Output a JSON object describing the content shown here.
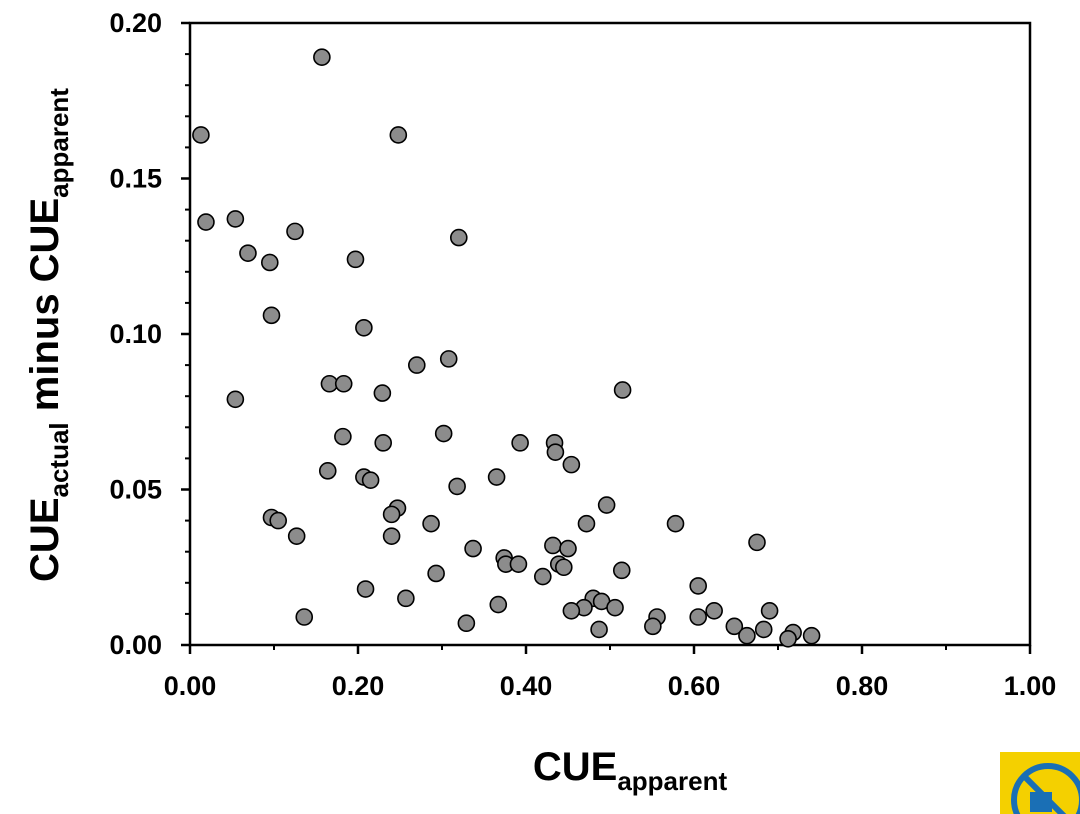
{
  "chart_data": {
    "type": "scatter",
    "xlabel": {
      "main": "CUE",
      "sub": "apparent"
    },
    "ylabel": {
      "main1": "CUE",
      "sub1": "actual",
      "mid": " minus CUE",
      "sub2": "apparent"
    },
    "xlim": [
      0,
      1
    ],
    "ylim": [
      0,
      0.2
    ],
    "x_ticks": [
      "0.00",
      "0.20",
      "0.40",
      "0.60",
      "0.80",
      "1.00"
    ],
    "y_ticks": [
      "0.00",
      "0.05",
      "0.10",
      "0.15",
      "0.20"
    ],
    "grid": false,
    "legend": "none",
    "marker_color": "#8c8c8c",
    "points": [
      [
        0.157,
        0.189
      ],
      [
        0.013,
        0.164
      ],
      [
        0.248,
        0.164
      ],
      [
        0.019,
        0.136
      ],
      [
        0.054,
        0.137
      ],
      [
        0.125,
        0.133
      ],
      [
        0.069,
        0.126
      ],
      [
        0.095,
        0.123
      ],
      [
        0.197,
        0.124
      ],
      [
        0.32,
        0.131
      ],
      [
        0.097,
        0.106
      ],
      [
        0.207,
        0.102
      ],
      [
        0.308,
        0.092
      ],
      [
        0.27,
        0.09
      ],
      [
        0.166,
        0.084
      ],
      [
        0.183,
        0.084
      ],
      [
        0.229,
        0.081
      ],
      [
        0.515,
        0.082
      ],
      [
        0.054,
        0.079
      ],
      [
        0.182,
        0.067
      ],
      [
        0.23,
        0.065
      ],
      [
        0.302,
        0.068
      ],
      [
        0.393,
        0.065
      ],
      [
        0.434,
        0.065
      ],
      [
        0.435,
        0.062
      ],
      [
        0.454,
        0.058
      ],
      [
        0.164,
        0.056
      ],
      [
        0.207,
        0.054
      ],
      [
        0.215,
        0.053
      ],
      [
        0.318,
        0.051
      ],
      [
        0.365,
        0.054
      ],
      [
        0.247,
        0.044
      ],
      [
        0.24,
        0.042
      ],
      [
        0.097,
        0.041
      ],
      [
        0.105,
        0.04
      ],
      [
        0.496,
        0.045
      ],
      [
        0.287,
        0.039
      ],
      [
        0.472,
        0.039
      ],
      [
        0.578,
        0.039
      ],
      [
        0.127,
        0.035
      ],
      [
        0.24,
        0.035
      ],
      [
        0.337,
        0.031
      ],
      [
        0.432,
        0.032
      ],
      [
        0.45,
        0.031
      ],
      [
        0.675,
        0.033
      ],
      [
        0.374,
        0.028
      ],
      [
        0.376,
        0.026
      ],
      [
        0.391,
        0.026
      ],
      [
        0.439,
        0.026
      ],
      [
        0.445,
        0.025
      ],
      [
        0.514,
        0.024
      ],
      [
        0.293,
        0.023
      ],
      [
        0.42,
        0.022
      ],
      [
        0.209,
        0.018
      ],
      [
        0.605,
        0.019
      ],
      [
        0.257,
        0.015
      ],
      [
        0.48,
        0.015
      ],
      [
        0.49,
        0.014
      ],
      [
        0.367,
        0.013
      ],
      [
        0.469,
        0.012
      ],
      [
        0.454,
        0.011
      ],
      [
        0.506,
        0.012
      ],
      [
        0.624,
        0.011
      ],
      [
        0.69,
        0.011
      ],
      [
        0.136,
        0.009
      ],
      [
        0.556,
        0.009
      ],
      [
        0.605,
        0.009
      ],
      [
        0.329,
        0.007
      ],
      [
        0.551,
        0.006
      ],
      [
        0.648,
        0.006
      ],
      [
        0.487,
        0.005
      ],
      [
        0.683,
        0.005
      ],
      [
        0.663,
        0.003
      ],
      [
        0.718,
        0.004
      ],
      [
        0.74,
        0.003
      ],
      [
        0.712,
        0.002
      ]
    ]
  },
  "badge": {
    "color_bg": "#f4d000",
    "color_ring": "#1a6fb5"
  }
}
